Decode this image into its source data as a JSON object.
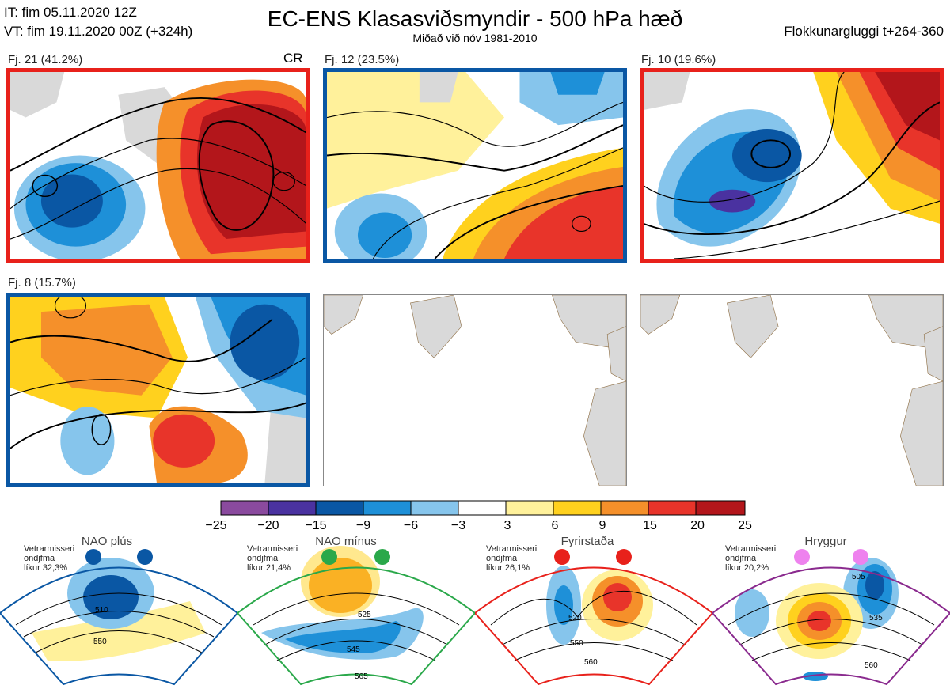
{
  "header": {
    "it": "IT: fim 05.11.2020 12Z",
    "vt": "VT: fim 19.11.2020 00Z  (+324h)",
    "title": "EC-ENS Klasasviðsmyndir - 500 hPa hæð",
    "subtitle": "Miðað við nóv 1981-2010",
    "window": "Flokkunargluggi t+264-360"
  },
  "panels": [
    {
      "label": "Fj. 21 (41.2%)",
      "tag": "CR",
      "frame": "red"
    },
    {
      "label": "Fj. 12 (23.5%)",
      "frame": "blue"
    },
    {
      "label": "Fj. 10 (19.6%)",
      "frame": "red"
    },
    {
      "label": "Fj. 8 (15.7%)",
      "frame": "blue"
    }
  ],
  "colorbar": {
    "colors": [
      "#8a4a9e",
      "#4a32a0",
      "#0a57a4",
      "#1e90d8",
      "#86c5ec",
      "#ffffff",
      "#fff19b",
      "#ffd11e",
      "#f5902a",
      "#e8342a",
      "#b3161b"
    ],
    "labels": [
      "−25",
      "−20",
      "−15",
      "−9",
      "−6",
      "−3",
      "3",
      "6",
      "9",
      "15",
      "20",
      "25"
    ]
  },
  "regimes": [
    {
      "name": "NAO plús",
      "note1": "Vetrarmisseri",
      "note2": "ondjfma",
      "note3": "líkur 32,3%",
      "color": "#0a57a4",
      "dot": "#0a57a4",
      "c1": "510",
      "c2": "550"
    },
    {
      "name": "NAO mínus",
      "note1": "Vetrarmisseri",
      "note2": "ondjfma",
      "note3": "líkur 21,4%",
      "color": "#2aa84a",
      "dot": "#2aa84a",
      "c1": "525",
      "c2": "545",
      "c3": "565"
    },
    {
      "name": "Fyrirstaða",
      "note1": "Vetrarmisseri",
      "note2": "ondjfma",
      "note3": "líkur 26,1%",
      "color": "#e8211b",
      "dot": "#e8211b",
      "c1": "520",
      "c2": "550",
      "c3": "560"
    },
    {
      "name": "Hryggur",
      "note1": "Vetrarmisseri",
      "note2": "ondjfma",
      "note3": "líkur 20,2%",
      "color": "#8a2a8e",
      "dot": "#ee82ee",
      "c1": "505",
      "c2": "535",
      "c3": "560"
    }
  ]
}
